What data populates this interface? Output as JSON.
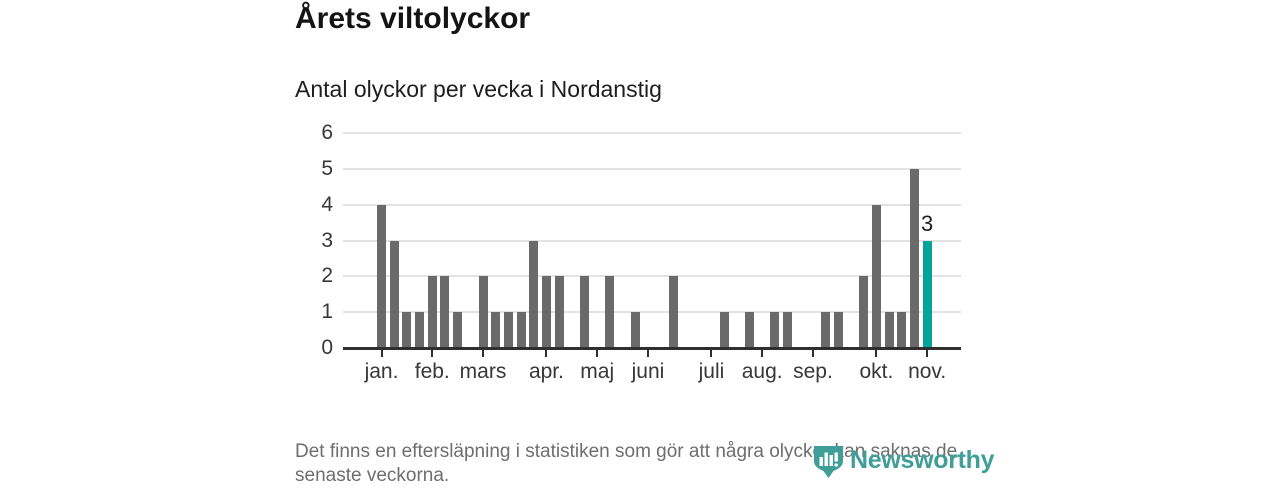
{
  "header": {
    "title": "Årets viltolyckor",
    "subtitle": "Antal olyckor per vecka i Nordanstig"
  },
  "chart_data": {
    "type": "bar",
    "title": "Årets viltolyckor",
    "subtitle": "Antal olyckor per vecka i Nordanstig",
    "x_unit": "vecka",
    "ylim": [
      0,
      6
    ],
    "yticks": [
      0,
      1,
      2,
      3,
      4,
      5,
      6
    ],
    "grid": true,
    "legend": "none",
    "values_by_week": [
      4,
      3,
      1,
      1,
      2,
      2,
      1,
      0,
      2,
      1,
      1,
      1,
      3,
      2,
      2,
      0,
      2,
      0,
      2,
      0,
      1,
      0,
      0,
      2,
      0,
      0,
      0,
      1,
      0,
      1,
      0,
      1,
      1,
      0,
      0,
      1,
      1,
      0,
      2,
      4,
      1,
      1,
      5,
      3
    ],
    "month_ticks": [
      {
        "label": "jan.",
        "week_index": 0
      },
      {
        "label": "feb.",
        "week_index": 4
      },
      {
        "label": "mars",
        "week_index": 8
      },
      {
        "label": "apr.",
        "week_index": 13
      },
      {
        "label": "maj",
        "week_index": 17
      },
      {
        "label": "juni",
        "week_index": 21
      },
      {
        "label": "juli",
        "week_index": 26
      },
      {
        "label": "aug.",
        "week_index": 30
      },
      {
        "label": "sep.",
        "week_index": 34
      },
      {
        "label": "okt.",
        "week_index": 39
      },
      {
        "label": "nov.",
        "week_index": 43
      }
    ],
    "highlight_index": 43,
    "highlight_label": "3",
    "bar_color": "#6a6a6a",
    "highlight_color": "#00a49b",
    "axis_text_color": "#373737",
    "gridline_color": "#e2e2e2",
    "baseline_color": "#2f2f2f"
  },
  "footer": {
    "note_line1": "Det finns en eftersläpning i statistiken som gör att några olyckor kan saknas de",
    "note_line2": "senaste veckorna."
  },
  "logo": {
    "wordmark": "Newsworthy",
    "color": "#3f9e97",
    "icon": "newsworthy-shield-bars-icon"
  }
}
